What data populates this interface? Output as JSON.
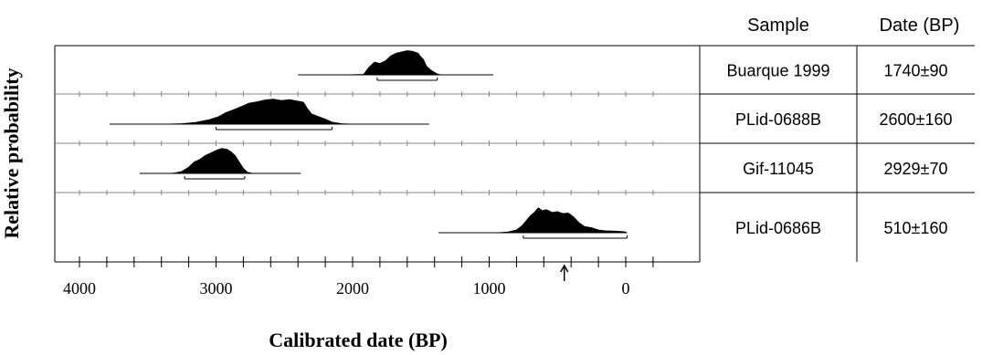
{
  "chart_data": {
    "type": "table",
    "xlabel": "Calibrated date (BP)",
    "ylabel": "Relative probability",
    "xlim": [
      4400,
      -400
    ],
    "x_ticks": [
      4000,
      3000,
      2000,
      1000,
      0
    ],
    "arrow_marker_x": 450,
    "table_headers": [
      "Sample",
      "Date (BP)"
    ],
    "series": [
      {
        "name": "Buarque 1999",
        "date": "1740±90",
        "range": [
          2400,
          970
        ],
        "interval": [
          1820,
          1380
        ],
        "points": [
          [
            2400,
            0
          ],
          [
            2100,
            0
          ],
          [
            1920,
            0.02
          ],
          [
            1880,
            0.3
          ],
          [
            1840,
            0.5
          ],
          [
            1800,
            0.45
          ],
          [
            1760,
            0.55
          ],
          [
            1720,
            0.75
          ],
          [
            1680,
            0.85
          ],
          [
            1640,
            0.9
          ],
          [
            1600,
            0.95
          ],
          [
            1560,
            0.92
          ],
          [
            1520,
            0.85
          ],
          [
            1500,
            0.7
          ],
          [
            1480,
            0.6
          ],
          [
            1460,
            0.35
          ],
          [
            1430,
            0.2
          ],
          [
            1400,
            0.1
          ],
          [
            1380,
            0.04
          ],
          [
            1360,
            0.01
          ],
          [
            1200,
            0
          ],
          [
            970,
            0
          ]
        ]
      },
      {
        "name": "PLid-0688B",
        "date": "2600±160",
        "range": [
          3780,
          1440
        ],
        "interval": [
          3000,
          2150
        ],
        "points": [
          [
            3780,
            0
          ],
          [
            3400,
            0
          ],
          [
            3250,
            0.02
          ],
          [
            3150,
            0.07
          ],
          [
            3050,
            0.18
          ],
          [
            2980,
            0.3
          ],
          [
            2930,
            0.45
          ],
          [
            2880,
            0.55
          ],
          [
            2820,
            0.68
          ],
          [
            2760,
            0.82
          ],
          [
            2700,
            0.88
          ],
          [
            2640,
            0.95
          ],
          [
            2580,
            0.98
          ],
          [
            2520,
            0.93
          ],
          [
            2460,
            0.96
          ],
          [
            2400,
            0.9
          ],
          [
            2360,
            0.86
          ],
          [
            2330,
            0.6
          ],
          [
            2300,
            0.4
          ],
          [
            2250,
            0.3
          ],
          [
            2200,
            0.2
          ],
          [
            2150,
            0.08
          ],
          [
            2080,
            0.02
          ],
          [
            2000,
            0
          ],
          [
            1440,
            0
          ]
        ]
      },
      {
        "name": "Gif-11045",
        "date": "2929±70",
        "range": [
          3560,
          2380
        ],
        "interval": [
          3230,
          2790
        ],
        "points": [
          [
            3560,
            0
          ],
          [
            3350,
            0
          ],
          [
            3300,
            0.02
          ],
          [
            3250,
            0.08
          ],
          [
            3200,
            0.25
          ],
          [
            3160,
            0.45
          ],
          [
            3120,
            0.55
          ],
          [
            3080,
            0.7
          ],
          [
            3040,
            0.8
          ],
          [
            3000,
            0.9
          ],
          [
            2960,
            0.98
          ],
          [
            2920,
            0.95
          ],
          [
            2890,
            0.85
          ],
          [
            2860,
            0.7
          ],
          [
            2830,
            0.45
          ],
          [
            2800,
            0.2
          ],
          [
            2770,
            0.05
          ],
          [
            2740,
            0.01
          ],
          [
            2700,
            0
          ],
          [
            2380,
            0
          ]
        ]
      },
      {
        "name": "PLid-0686B",
        "date": "510±160",
        "range": [
          1370,
          -10
        ],
        "interval": [
          750,
          -10
        ],
        "points": [
          [
            1370,
            0
          ],
          [
            950,
            0
          ],
          [
            860,
            0.03
          ],
          [
            800,
            0.1
          ],
          [
            760,
            0.25
          ],
          [
            730,
            0.42
          ],
          [
            700,
            0.6
          ],
          [
            670,
            0.72
          ],
          [
            640,
            0.88
          ],
          [
            610,
            0.78
          ],
          [
            580,
            0.82
          ],
          [
            540,
            0.72
          ],
          [
            500,
            0.75
          ],
          [
            460,
            0.68
          ],
          [
            420,
            0.7
          ],
          [
            380,
            0.55
          ],
          [
            340,
            0.35
          ],
          [
            300,
            0.22
          ],
          [
            250,
            0.18
          ],
          [
            200,
            0.1
          ],
          [
            150,
            0.07
          ],
          [
            100,
            0.06
          ],
          [
            50,
            0.05
          ],
          [
            10,
            0.04
          ],
          [
            -10,
            0
          ]
        ]
      }
    ]
  }
}
